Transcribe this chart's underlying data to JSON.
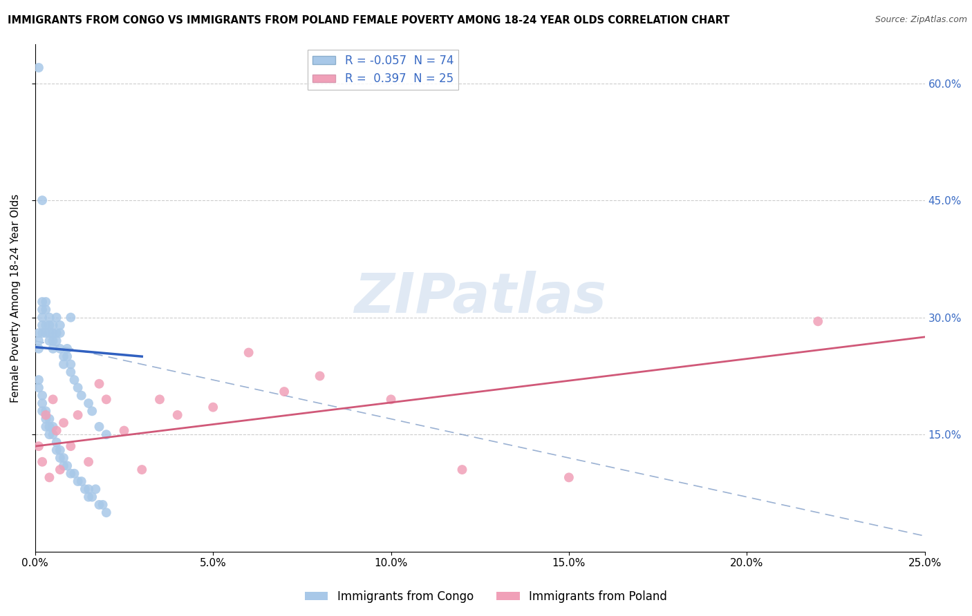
{
  "title": "IMMIGRANTS FROM CONGO VS IMMIGRANTS FROM POLAND FEMALE POVERTY AMONG 18-24 YEAR OLDS CORRELATION CHART",
  "source": "Source: ZipAtlas.com",
  "ylabel": "Female Poverty Among 18-24 Year Olds",
  "xlim": [
    0.0,
    0.25
  ],
  "ylim": [
    0.0,
    0.65
  ],
  "xtick_labels": [
    "0.0%",
    "5.0%",
    "10.0%",
    "15.0%",
    "20.0%",
    "25.0%"
  ],
  "xtick_vals": [
    0.0,
    0.05,
    0.1,
    0.15,
    0.2,
    0.25
  ],
  "ytick_labels": [
    "15.0%",
    "30.0%",
    "45.0%",
    "60.0%"
  ],
  "ytick_vals": [
    0.15,
    0.3,
    0.45,
    0.6
  ],
  "legend_r_congo": "-0.057",
  "legend_n_congo": "74",
  "legend_r_poland": "0.397",
  "legend_n_poland": "25",
  "color_congo": "#a8c8e8",
  "color_poland": "#f0a0b8",
  "line_color_congo": "#3060c0",
  "line_color_poland": "#d05878",
  "watermark_text": "ZIPatlas",
  "congo_x": [
    0.001,
    0.001,
    0.001,
    0.001,
    0.002,
    0.002,
    0.002,
    0.002,
    0.002,
    0.003,
    0.003,
    0.003,
    0.003,
    0.004,
    0.004,
    0.004,
    0.004,
    0.005,
    0.005,
    0.005,
    0.005,
    0.006,
    0.006,
    0.006,
    0.007,
    0.007,
    0.007,
    0.008,
    0.008,
    0.009,
    0.009,
    0.01,
    0.01,
    0.011,
    0.012,
    0.013,
    0.015,
    0.016,
    0.018,
    0.02,
    0.001,
    0.001,
    0.002,
    0.002,
    0.002,
    0.003,
    0.003,
    0.003,
    0.004,
    0.004,
    0.004,
    0.005,
    0.005,
    0.006,
    0.006,
    0.007,
    0.007,
    0.008,
    0.008,
    0.009,
    0.01,
    0.011,
    0.012,
    0.013,
    0.014,
    0.015,
    0.015,
    0.016,
    0.017,
    0.018,
    0.019,
    0.02,
    0.002,
    0.01
  ],
  "congo_y": [
    0.62,
    0.28,
    0.27,
    0.26,
    0.32,
    0.31,
    0.3,
    0.29,
    0.28,
    0.32,
    0.31,
    0.29,
    0.28,
    0.3,
    0.29,
    0.28,
    0.27,
    0.29,
    0.28,
    0.27,
    0.26,
    0.3,
    0.28,
    0.27,
    0.29,
    0.28,
    0.26,
    0.25,
    0.24,
    0.26,
    0.25,
    0.24,
    0.23,
    0.22,
    0.21,
    0.2,
    0.19,
    0.18,
    0.16,
    0.15,
    0.22,
    0.21,
    0.2,
    0.19,
    0.18,
    0.18,
    0.17,
    0.16,
    0.17,
    0.16,
    0.15,
    0.16,
    0.15,
    0.14,
    0.13,
    0.13,
    0.12,
    0.12,
    0.11,
    0.11,
    0.1,
    0.1,
    0.09,
    0.09,
    0.08,
    0.08,
    0.07,
    0.07,
    0.08,
    0.06,
    0.06,
    0.05,
    0.45,
    0.3
  ],
  "poland_x": [
    0.001,
    0.002,
    0.003,
    0.004,
    0.005,
    0.006,
    0.007,
    0.008,
    0.01,
    0.012,
    0.015,
    0.018,
    0.02,
    0.025,
    0.03,
    0.035,
    0.04,
    0.05,
    0.06,
    0.07,
    0.08,
    0.1,
    0.12,
    0.15,
    0.22
  ],
  "poland_y": [
    0.135,
    0.115,
    0.175,
    0.095,
    0.195,
    0.155,
    0.105,
    0.165,
    0.135,
    0.175,
    0.115,
    0.215,
    0.195,
    0.155,
    0.105,
    0.195,
    0.175,
    0.185,
    0.255,
    0.205,
    0.225,
    0.195,
    0.105,
    0.095,
    0.295
  ],
  "dashed_line": {
    "x0": 0.0,
    "y0": 0.27,
    "x1": 0.25,
    "y1": 0.02
  },
  "poland_line": {
    "x0": 0.0,
    "y0": 0.135,
    "x1": 0.25,
    "y1": 0.275
  },
  "congo_line": {
    "x0": 0.0,
    "y0": 0.262,
    "x1": 0.03,
    "y1": 0.25
  }
}
